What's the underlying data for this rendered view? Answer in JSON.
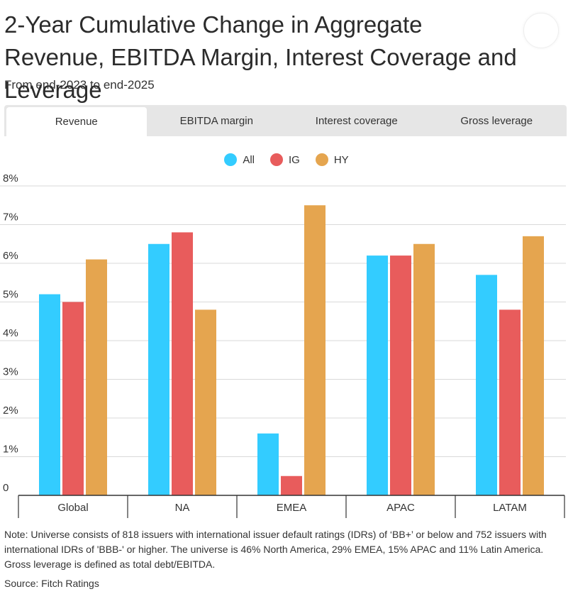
{
  "header": {
    "title": "2-Year Cumulative Change in Aggregate Revenue, EBITDA Margin, Interest Coverage and Leverage",
    "subtitle": "From end-2023 to end-2025"
  },
  "tabs": [
    {
      "label": "Revenue",
      "active": true
    },
    {
      "label": "EBITDA margin",
      "active": false
    },
    {
      "label": "Interest coverage",
      "active": false
    },
    {
      "label": "Gross leverage",
      "active": false
    }
  ],
  "footer": {
    "note": "Note:  Universe consists of 818 issuers with international issuer default ratings (IDRs) of ‘BB+’ or below and 752 issuers with international IDRs of 'BBB-' or higher.  The universe is 46% North America, 29% EMEA, 15% APAC and 11% Latin America. Gross leverage is defined as total debt/EBITDA.",
    "source": "Source: Fitch Ratings"
  },
  "chart_data": {
    "type": "bar",
    "categories": [
      "Global",
      "NA",
      "EMEA",
      "APAC",
      "LATAM"
    ],
    "series": [
      {
        "name": "All",
        "color": "#33ccff",
        "values": [
          5.2,
          6.5,
          1.6,
          6.2,
          5.7
        ]
      },
      {
        "name": "IG",
        "color": "#e85c5c",
        "values": [
          5.0,
          6.8,
          0.5,
          6.2,
          4.8
        ]
      },
      {
        "name": "HY",
        "color": "#e5a54f",
        "values": [
          6.1,
          4.8,
          7.5,
          6.5,
          6.7
        ]
      }
    ],
    "y_ticks": [
      "0",
      "1%",
      "2%",
      "3%",
      "4%",
      "5%",
      "6%",
      "7%",
      "8%"
    ],
    "ylim": [
      0,
      8
    ],
    "grid": true,
    "legend_position": "top-center"
  }
}
